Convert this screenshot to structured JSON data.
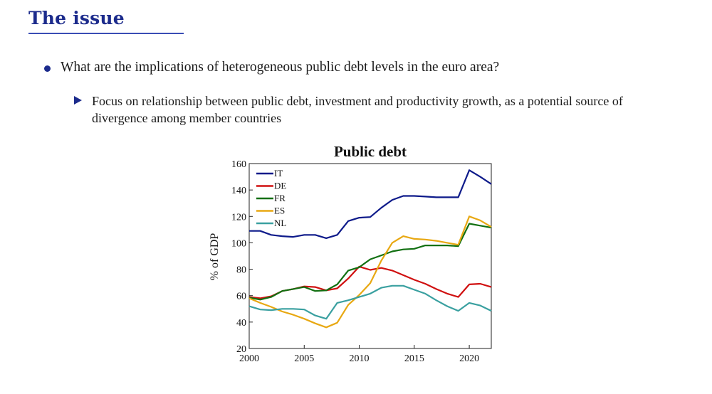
{
  "slide": {
    "title": "The issue",
    "bullet": "What are the implications of heterogeneous public debt levels in the euro area?",
    "sub_bullet": "Focus on relationship between public debt, investment and productivity growth, as a potential source of divergence among member countries"
  },
  "chart_data": {
    "type": "line",
    "title": "Public debt",
    "xlabel": "",
    "ylabel": "% of GDP",
    "xlim": [
      2000,
      2022
    ],
    "ylim": [
      20,
      160
    ],
    "xticks": [
      2000,
      2005,
      2010,
      2015,
      2020
    ],
    "yticks": [
      20,
      40,
      60,
      80,
      100,
      120,
      140,
      160
    ],
    "legend_position": "top-left",
    "grid": false,
    "x": [
      2000,
      2001,
      2002,
      2003,
      2004,
      2005,
      2006,
      2007,
      2008,
      2009,
      2010,
      2011,
      2012,
      2013,
      2014,
      2015,
      2016,
      2017,
      2018,
      2019,
      2020,
      2021,
      2022
    ],
    "series": [
      {
        "name": "IT",
        "color": "#0d1a8a",
        "values": [
          109,
          109,
          106,
          105,
          104.5,
          106,
          106,
          103.5,
          106,
          116.5,
          119,
          119.5,
          126.5,
          132.5,
          135.5,
          135.5,
          135,
          134.5,
          134.5,
          134.5,
          155,
          150,
          144.5
        ]
      },
      {
        "name": "DE",
        "color": "#d01010",
        "values": [
          59,
          58,
          59.5,
          63.5,
          65,
          67,
          66.5,
          64,
          65.5,
          73,
          82,
          79.5,
          81,
          79,
          75.5,
          72,
          69,
          65,
          61.5,
          59,
          68.5,
          69,
          66.5
        ]
      },
      {
        "name": "FR",
        "color": "#127012",
        "values": [
          58.5,
          57,
          59,
          63.5,
          65,
          66.5,
          63.5,
          64,
          68.5,
          79,
          81.5,
          87.5,
          90.5,
          93.5,
          95,
          95.5,
          98,
          98,
          98,
          97.5,
          114.5,
          113,
          111.5
        ]
      },
      {
        "name": "ES",
        "color": "#e8a812",
        "values": [
          58,
          54.5,
          51.5,
          48,
          45.5,
          42.5,
          39,
          36,
          39.5,
          53,
          60.5,
          69.5,
          86.5,
          100,
          105,
          103,
          102.5,
          101.5,
          100,
          98.5,
          120,
          117,
          112
        ]
      },
      {
        "name": "NL",
        "color": "#3aa0a0",
        "values": [
          52,
          49.5,
          49,
          50,
          50,
          49.5,
          45,
          42.5,
          54.5,
          56.5,
          59,
          61.5,
          66,
          67.5,
          67.5,
          64.5,
          61.5,
          56.5,
          52,
          48.5,
          54.5,
          52.5,
          48.5
        ]
      }
    ]
  }
}
